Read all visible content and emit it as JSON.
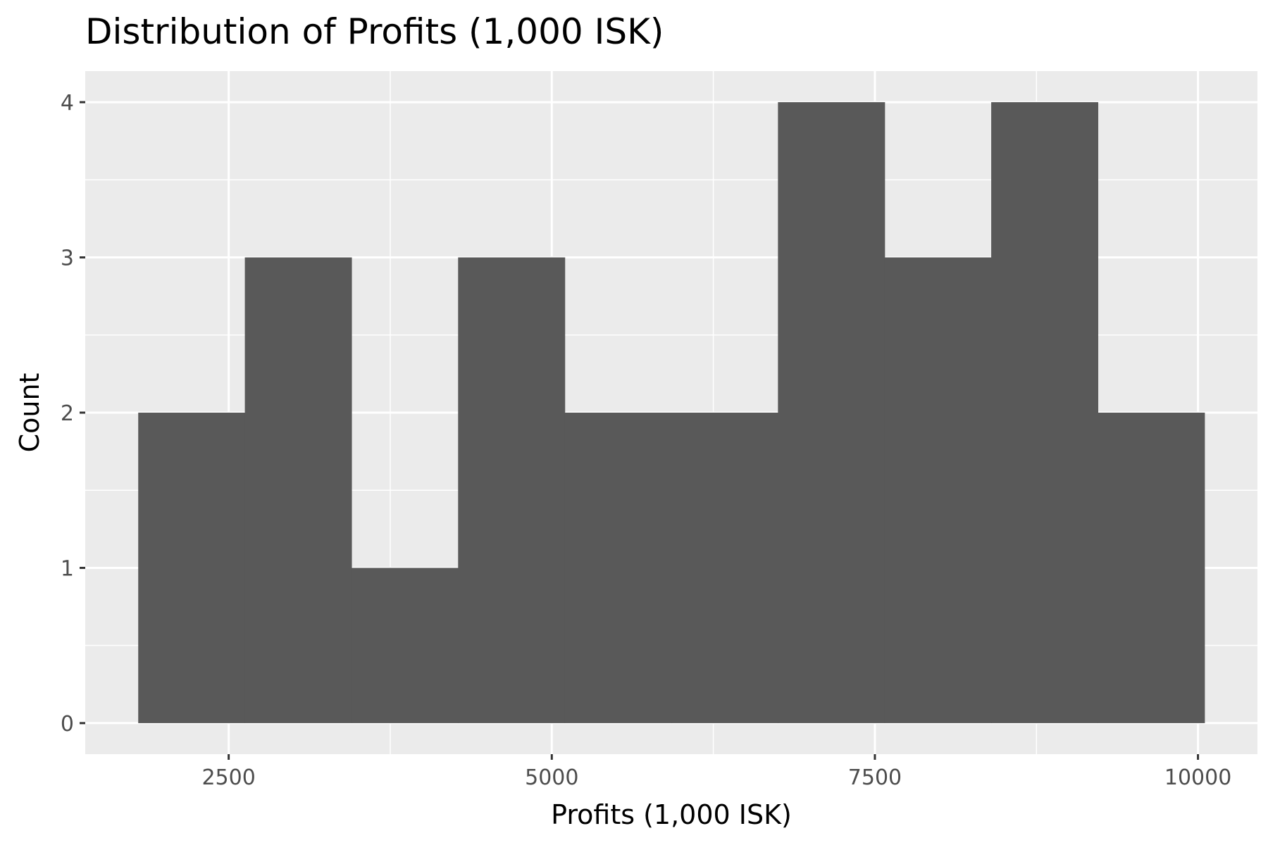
{
  "chart_data": {
    "type": "bar",
    "title": "Distribution of Profits (1,000 ISK)",
    "xlabel": "Profits (1,000 ISK)",
    "ylabel": "Count",
    "bins": [
      {
        "x0": 1800,
        "x1": 2625,
        "count": 2
      },
      {
        "x0": 2625,
        "x1": 3450,
        "count": 3
      },
      {
        "x0": 3450,
        "x1": 4275,
        "count": 1
      },
      {
        "x0": 4275,
        "x1": 5100,
        "count": 3
      },
      {
        "x0": 5100,
        "x1": 5925,
        "count": 2
      },
      {
        "x0": 5925,
        "x1": 6750,
        "count": 2
      },
      {
        "x0": 6750,
        "x1": 7575,
        "count": 4
      },
      {
        "x0": 7575,
        "x1": 8400,
        "count": 3
      },
      {
        "x0": 8400,
        "x1": 9225,
        "count": 4
      },
      {
        "x0": 9225,
        "x1": 10050,
        "count": 2
      }
    ],
    "xlim": [
      1390,
      10460
    ],
    "ylim": [
      -0.2,
      4.2
    ],
    "x_ticks": [
      2500,
      5000,
      7500,
      10000
    ],
    "x_tick_labels": [
      "2500",
      "5000",
      "7500",
      "10000"
    ],
    "y_ticks": [
      0,
      1,
      2,
      3,
      4
    ],
    "y_tick_labels": [
      "0",
      "1",
      "2",
      "3",
      "4"
    ],
    "x_minor_ticks": [
      3750,
      6250,
      8750
    ],
    "y_minor_ticks": [
      0.5,
      1.5,
      2.5,
      3.5
    ],
    "grid": true,
    "colors": {
      "bar": "#595959",
      "panel": "#ebebeb",
      "grid": "#ffffff",
      "tick_text": "#4d4d4d"
    }
  }
}
